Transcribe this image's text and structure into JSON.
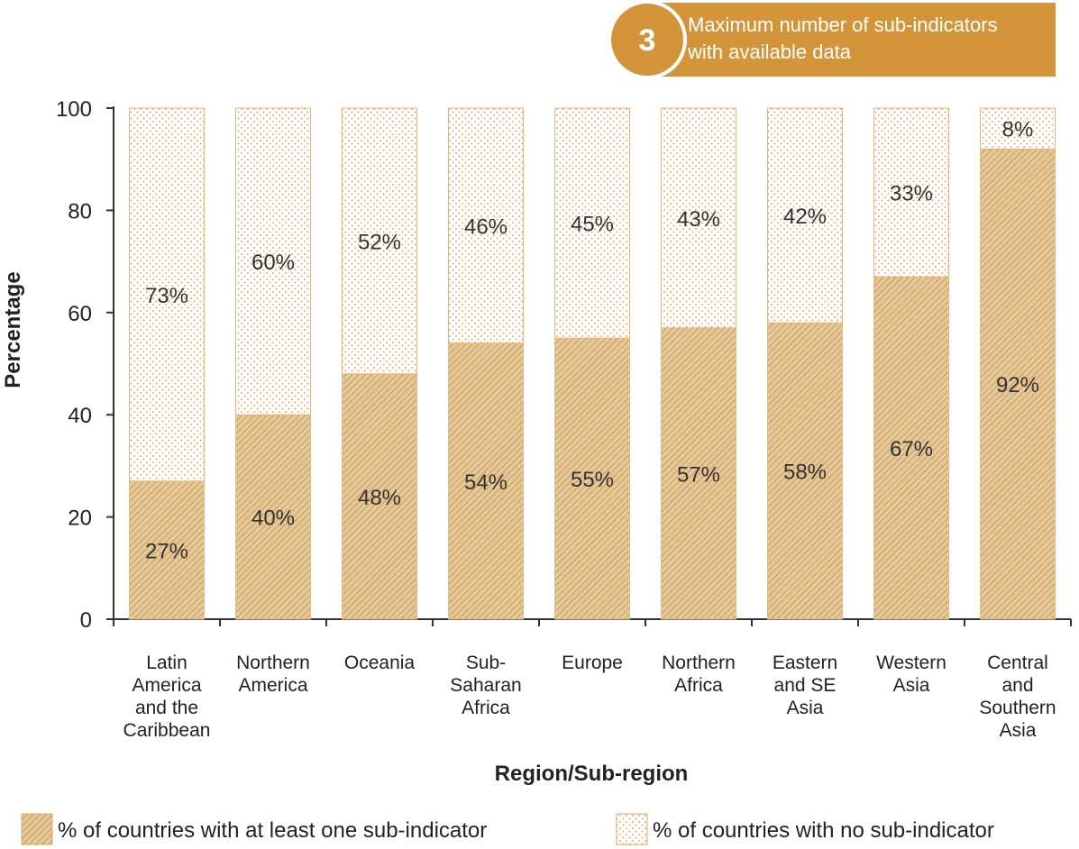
{
  "chart_data": {
    "type": "bar",
    "stacked": true,
    "categories": [
      [
        "Latin",
        "America",
        "and the",
        "Caribbean"
      ],
      [
        "Northern",
        "America"
      ],
      [
        "Oceania"
      ],
      [
        "Sub-",
        "Saharan",
        "Africa"
      ],
      [
        "Europe"
      ],
      [
        "Northern",
        "Africa"
      ],
      [
        "Eastern",
        "and SE",
        "Asia"
      ],
      [
        "Western",
        "Asia"
      ],
      [
        "Central",
        "and",
        "Southern",
        "Asia"
      ]
    ],
    "series": [
      {
        "name": "% of countries with at least one sub-indicator",
        "values": [
          27,
          40,
          48,
          54,
          55,
          57,
          58,
          67,
          92
        ],
        "labels": [
          "27%",
          "40%",
          "48%",
          "54%",
          "55%",
          "57%",
          "58%",
          "67%",
          "92%"
        ],
        "color": "#E0BE8A",
        "pattern": "hatched"
      },
      {
        "name": "% of countries with no sub-indicator",
        "values": [
          73,
          60,
          52,
          46,
          45,
          43,
          42,
          33,
          8
        ],
        "labels": [
          "73%",
          "60%",
          "52%",
          "46%",
          "45%",
          "43%",
          "42%",
          "33%",
          "8%"
        ],
        "color": "#F0A060",
        "pattern": "dotted"
      }
    ],
    "xlabel": "Region/Sub-region",
    "ylabel": "Percentage",
    "ylim": [
      0,
      100
    ],
    "yticks": [
      "0",
      "20",
      "40",
      "60",
      "80",
      "100"
    ],
    "grid": false,
    "legend_position": "bottom"
  },
  "badge": {
    "number": "3",
    "text_line1": "Maximum number of sub-indicators",
    "text_line2": "with available data",
    "color": "#D4953A"
  }
}
